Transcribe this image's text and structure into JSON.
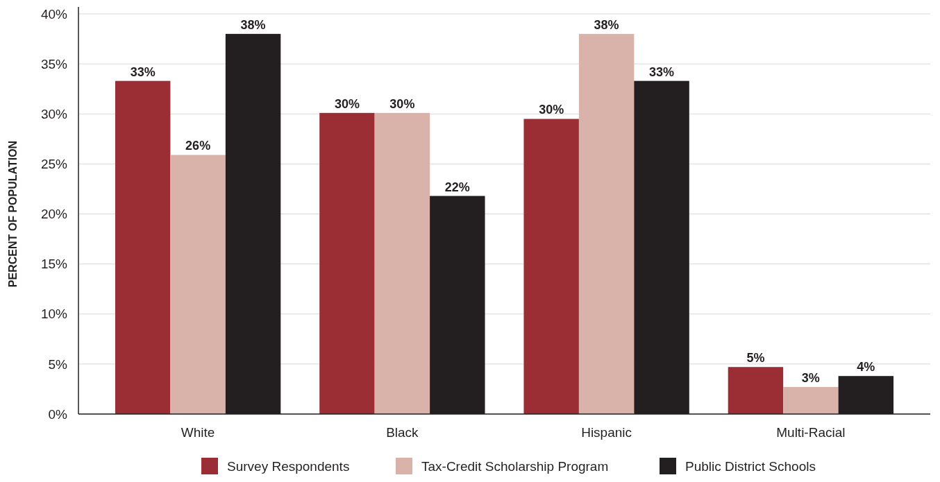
{
  "chart_data": {
    "type": "bar",
    "ylabel": "PERCENT OF POPULATION",
    "categories": [
      "White",
      "Black",
      "Hispanic",
      "Multi-Racial"
    ],
    "series": [
      {
        "name": "Survey Respondents",
        "color": "#9b2d34",
        "values": [
          33.3,
          30.1,
          29.5,
          4.7
        ],
        "value_labels": [
          "33%",
          "30%",
          "30%",
          "5%"
        ]
      },
      {
        "name": "Tax-Credit Scholarship Program",
        "color": "#d9b2aa",
        "values": [
          25.9,
          30.1,
          38.0,
          2.7
        ],
        "value_labels": [
          "26%",
          "30%",
          "38%",
          "3%"
        ]
      },
      {
        "name": "Public District Schools",
        "color": "#231f20",
        "values": [
          38.0,
          21.8,
          33.3,
          3.8
        ],
        "value_labels": [
          "38%",
          "22%",
          "33%",
          "4%"
        ]
      }
    ],
    "ylim": [
      0,
      40
    ],
    "yticks": [
      {
        "value": 0,
        "label": "0%"
      },
      {
        "value": 5,
        "label": "5%"
      },
      {
        "value": 10,
        "label": "10%"
      },
      {
        "value": 15,
        "label": "15%"
      },
      {
        "value": 20,
        "label": "20%"
      },
      {
        "value": 25,
        "label": "25%"
      },
      {
        "value": 30,
        "label": "30%"
      },
      {
        "value": 35,
        "label": "35%"
      },
      {
        "value": 40,
        "label": "40%"
      }
    ],
    "grid": "y",
    "legend": "bottom"
  }
}
